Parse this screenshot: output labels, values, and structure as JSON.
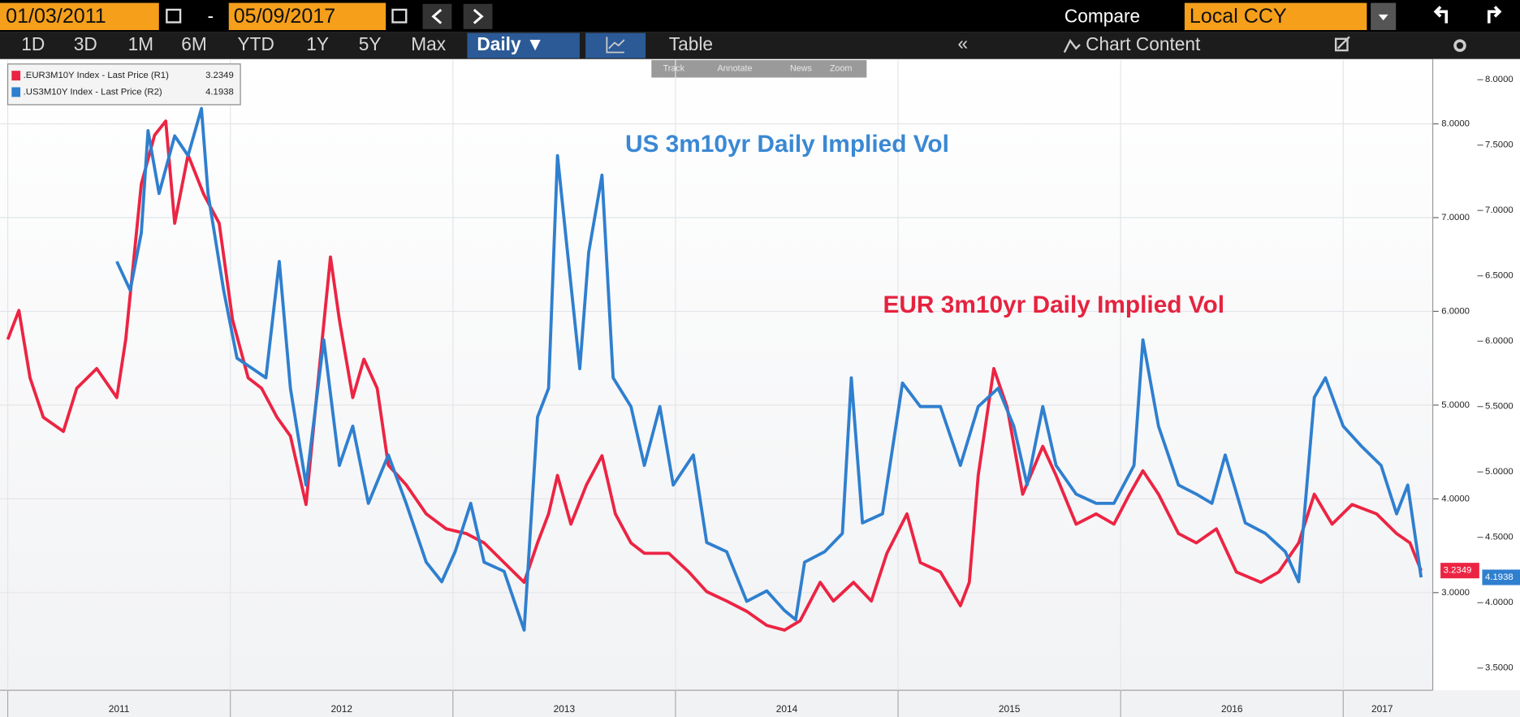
{
  "toolbar": {
    "start_date": "01/03/2011",
    "separator": "-",
    "end_date": "05/09/2017",
    "compare": "Compare",
    "currency": "Local CCY",
    "periods": [
      "1D",
      "3D",
      "1M",
      "6M",
      "YTD",
      "1Y",
      "5Y",
      "Max"
    ],
    "frequency": "Daily ▼",
    "table": "Table",
    "chart_content": "Chart Content",
    "tools": [
      "Track",
      "Annotate",
      "News",
      "Zoom"
    ]
  },
  "chart_data": {
    "type": "line",
    "annotations": [
      {
        "text": "US 3m10yr Daily Implied Vol",
        "color": "#3a88d4"
      },
      {
        "text": "EUR 3m10yr Daily Implied Vol",
        "color": "#e5233f"
      }
    ],
    "series": [
      {
        "name": ".EUR3M10Y Index - Last Price (R1)",
        "color": "#ec2443",
        "axis": "y",
        "x": [
          2011,
          2011.05,
          2011.1,
          2011.16,
          2011.25,
          2011.31,
          2011.4,
          2011.49,
          2011.53,
          2011.6,
          2011.66,
          2011.71,
          2011.75,
          2011.81,
          2011.88,
          2011.95,
          2012.01,
          2012.08,
          2012.14,
          2012.21,
          2012.27,
          2012.34,
          2012.4,
          2012.45,
          2012.49,
          2012.55,
          2012.6,
          2012.66,
          2012.71,
          2012.79,
          2012.88,
          2012.97,
          2013.06,
          2013.14,
          2013.23,
          2013.32,
          2013.38,
          2013.43,
          2013.47,
          2013.53,
          2013.6,
          2013.67,
          2013.73,
          2013.8,
          2013.86,
          2013.97,
          2014.06,
          2014.14,
          2014.23,
          2014.32,
          2014.41,
          2014.49,
          2014.56,
          2014.65,
          2014.71,
          2014.8,
          2014.88,
          2014.95,
          2015.04,
          2015.1,
          2015.19,
          2015.28,
          2015.32,
          2015.36,
          2015.43,
          2015.49,
          2015.56,
          2015.65,
          2015.71,
          2015.8,
          2015.89,
          2015.97,
          2016.04,
          2016.1,
          2016.17,
          2016.26,
          2016.34,
          2016.43,
          2016.52,
          2016.63,
          2016.71,
          2016.8,
          2016.87,
          2016.95,
          2017.04,
          2017.15,
          2017.24,
          2017.3,
          2017.35
        ],
        "values": [
          5.7,
          6.01,
          5.29,
          4.87,
          4.72,
          5.18,
          5.39,
          5.08,
          5.7,
          7.36,
          7.88,
          8.03,
          6.94,
          7.67,
          7.25,
          6.94,
          5.91,
          5.29,
          5.18,
          4.87,
          4.67,
          3.94,
          5.39,
          6.58,
          5.91,
          5.08,
          5.49,
          5.18,
          4.36,
          4.15,
          3.84,
          3.68,
          3.63,
          3.53,
          3.32,
          3.11,
          3.53,
          3.84,
          4.25,
          3.73,
          4.15,
          4.46,
          3.84,
          3.53,
          3.42,
          3.42,
          3.22,
          3.01,
          2.91,
          2.8,
          2.65,
          2.6,
          2.7,
          3.11,
          2.91,
          3.11,
          2.91,
          3.42,
          3.84,
          3.32,
          3.22,
          2.86,
          3.11,
          4.25,
          5.39,
          4.98,
          4.05,
          4.56,
          4.25,
          3.73,
          3.84,
          3.73,
          4.05,
          4.3,
          4.05,
          3.63,
          3.53,
          3.68,
          3.22,
          3.11,
          3.22,
          3.53,
          4.05,
          3.73,
          3.94,
          3.84,
          3.63,
          3.53,
          3.2349
        ]
      },
      {
        "name": ".US3M10Y Index - Last Price (R2)",
        "color": "#2f7fcf",
        "axis": "y2",
        "x": [
          2011.49,
          2011.55,
          2011.6,
          2011.63,
          2011.68,
          2011.75,
          2011.81,
          2011.87,
          2011.9,
          2011.97,
          2012.03,
          2012.1,
          2012.16,
          2012.22,
          2012.27,
          2012.34,
          2012.42,
          2012.49,
          2012.55,
          2012.62,
          2012.71,
          2012.79,
          2012.88,
          2012.95,
          2013.01,
          2013.08,
          2013.14,
          2013.23,
          2013.32,
          2013.38,
          2013.43,
          2013.47,
          2013.51,
          2013.57,
          2013.61,
          2013.67,
          2013.72,
          2013.8,
          2013.86,
          2013.93,
          2013.99,
          2014.08,
          2014.14,
          2014.23,
          2014.32,
          2014.41,
          2014.49,
          2014.54,
          2014.58,
          2014.67,
          2014.75,
          2014.79,
          2014.84,
          2014.93,
          2015.02,
          2015.1,
          2015.19,
          2015.28,
          2015.36,
          2015.45,
          2015.52,
          2015.58,
          2015.65,
          2015.71,
          2015.8,
          2015.89,
          2015.97,
          2016.06,
          2016.1,
          2016.17,
          2016.26,
          2016.34,
          2016.41,
          2016.47,
          2016.56,
          2016.65,
          2016.74,
          2016.8,
          2016.87,
          2016.92,
          2017,
          2017.08,
          2017.17,
          2017.24,
          2017.29,
          2017.35
        ],
        "values": [
          6.61,
          6.39,
          6.83,
          7.61,
          7.13,
          7.57,
          7.42,
          7.78,
          7.13,
          6.39,
          5.87,
          5.79,
          5.72,
          6.61,
          5.64,
          4.9,
          6.01,
          5.05,
          5.35,
          4.76,
          5.13,
          4.76,
          4.31,
          4.16,
          4.39,
          4.76,
          4.31,
          4.24,
          3.79,
          5.42,
          5.64,
          7.42,
          6.76,
          5.79,
          6.68,
          7.27,
          5.72,
          5.5,
          5.05,
          5.5,
          4.9,
          5.13,
          4.46,
          4.39,
          4.01,
          4.09,
          3.94,
          3.87,
          4.31,
          4.39,
          4.53,
          5.72,
          4.61,
          4.68,
          5.68,
          5.5,
          5.5,
          5.05,
          5.5,
          5.64,
          5.35,
          4.9,
          5.5,
          5.05,
          4.83,
          4.76,
          4.76,
          5.05,
          6.01,
          5.35,
          4.9,
          4.83,
          4.76,
          5.13,
          4.61,
          4.53,
          4.39,
          4.16,
          5.57,
          5.72,
          5.35,
          5.2,
          5.05,
          4.68,
          4.9,
          4.1938
        ]
      }
    ],
    "xlim": [
      2011,
      2017.35
    ],
    "xticks": [
      2011,
      2012,
      2013,
      2014,
      2015,
      2016,
      2017
    ],
    "ylim": [
      2.0,
      8.68
    ],
    "yticks": [
      {
        "value": 3,
        "label": "3.0000"
      },
      {
        "value": 4,
        "label": "4.0000"
      },
      {
        "value": 5,
        "label": "5.0000"
      },
      {
        "value": 6,
        "label": "6.0000"
      },
      {
        "value": 7,
        "label": "7.0000"
      },
      {
        "value": 8,
        "label": "8.0000"
      }
    ],
    "y2lim": [
      3.36,
      8.15
    ],
    "y2ticks": [
      {
        "value": 3.5,
        "label": "3.5000"
      },
      {
        "value": 4,
        "label": "4.0000"
      },
      {
        "value": 4.5,
        "label": "4.5000"
      },
      {
        "value": 5,
        "label": "5.0000"
      },
      {
        "value": 5.5,
        "label": "5.5000"
      },
      {
        "value": 6,
        "label": "6.0000"
      },
      {
        "value": 6.5,
        "label": "6.5000"
      },
      {
        "value": 7,
        "label": "7.0000"
      },
      {
        "value": 7.5,
        "label": "7.5000"
      },
      {
        "value": 8,
        "label": "8.0000"
      }
    ],
    "grid": true
  }
}
